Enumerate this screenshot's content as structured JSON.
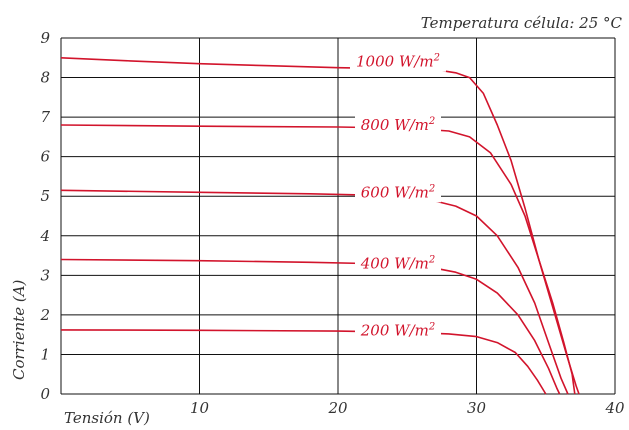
{
  "chart_data": {
    "type": "line",
    "title": "",
    "annotation": "Temperatura célula: 25 °C",
    "xlabel": "Tensión (V)",
    "ylabel": "Corriente (A)",
    "xlim": [
      0,
      40
    ],
    "ylim": [
      0,
      9
    ],
    "xticks": [
      0,
      10,
      20,
      30,
      40
    ],
    "yticks": [
      0,
      1,
      2,
      3,
      4,
      5,
      6,
      7,
      8,
      9
    ],
    "xtick_labels": [
      "0",
      "10",
      "20",
      "30",
      "40"
    ],
    "ytick_labels": [
      "0",
      "1",
      "2",
      "3",
      "4",
      "5",
      "6",
      "7",
      "8",
      "9"
    ],
    "grid": true,
    "line_color": "#d2142c",
    "series": [
      {
        "name": "1000 W/m2",
        "label_base": "1000 W/m",
        "label_exp": "2",
        "label_at": [
          20,
          8.4
        ],
        "points": [
          [
            0,
            8.5
          ],
          [
            5,
            8.42
          ],
          [
            10,
            8.35
          ],
          [
            15,
            8.3
          ],
          [
            20,
            8.25
          ],
          [
            25,
            8.22
          ],
          [
            27,
            8.2
          ],
          [
            28.5,
            8.12
          ],
          [
            29.5,
            8.0
          ],
          [
            30.5,
            7.6
          ],
          [
            31.5,
            6.8
          ],
          [
            32.5,
            5.9
          ],
          [
            33.5,
            4.7
          ],
          [
            34.5,
            3.4
          ],
          [
            35.5,
            2.2
          ],
          [
            36.5,
            1.0
          ],
          [
            37.2,
            0.2
          ],
          [
            37.4,
            0
          ]
        ]
      },
      {
        "name": "800 W/m2",
        "label_base": "800 W/m",
        "label_exp": "2",
        "label_at": [
          20,
          6.8
        ],
        "points": [
          [
            0,
            6.8
          ],
          [
            10,
            6.77
          ],
          [
            20,
            6.75
          ],
          [
            25,
            6.72
          ],
          [
            28,
            6.65
          ],
          [
            29.5,
            6.5
          ],
          [
            31,
            6.1
          ],
          [
            32.5,
            5.3
          ],
          [
            33.5,
            4.5
          ],
          [
            34.5,
            3.4
          ],
          [
            35.5,
            2.3
          ],
          [
            36.3,
            1.3
          ],
          [
            36.9,
            0.5
          ],
          [
            37.1,
            0
          ]
        ]
      },
      {
        "name": "600 W/m2",
        "label_base": "600 W/m",
        "label_exp": "2",
        "label_at": [
          20,
          5.1
        ],
        "points": [
          [
            0,
            5.15
          ],
          [
            10,
            5.1
          ],
          [
            18,
            5.06
          ],
          [
            22,
            5.03
          ],
          [
            25,
            4.98
          ],
          [
            27,
            4.88
          ],
          [
            28.5,
            4.75
          ],
          [
            30,
            4.5
          ],
          [
            31.5,
            4.0
          ],
          [
            33,
            3.2
          ],
          [
            34.2,
            2.3
          ],
          [
            35.2,
            1.3
          ],
          [
            36.1,
            0.4
          ],
          [
            36.6,
            0
          ]
        ]
      },
      {
        "name": "400 W/m2",
        "label_base": "400 W/m",
        "label_exp": "2",
        "label_at": [
          20,
          3.3
        ],
        "points": [
          [
            0,
            3.4
          ],
          [
            10,
            3.37
          ],
          [
            18,
            3.33
          ],
          [
            22,
            3.3
          ],
          [
            25,
            3.25
          ],
          [
            27,
            3.18
          ],
          [
            28.5,
            3.08
          ],
          [
            30,
            2.9
          ],
          [
            31.5,
            2.55
          ],
          [
            33,
            2.0
          ],
          [
            34.2,
            1.35
          ],
          [
            35.2,
            0.65
          ],
          [
            35.8,
            0.15
          ],
          [
            36,
            0
          ]
        ]
      },
      {
        "name": "200 W/m2",
        "label_base": "200 W/m",
        "label_exp": "2",
        "label_at": [
          20,
          1.6
        ],
        "points": [
          [
            0,
            1.62
          ],
          [
            10,
            1.61
          ],
          [
            20,
            1.59
          ],
          [
            25,
            1.56
          ],
          [
            28,
            1.52
          ],
          [
            30,
            1.45
          ],
          [
            31.5,
            1.3
          ],
          [
            32.8,
            1.05
          ],
          [
            33.7,
            0.7
          ],
          [
            34.4,
            0.35
          ],
          [
            35,
            0
          ]
        ]
      }
    ]
  }
}
